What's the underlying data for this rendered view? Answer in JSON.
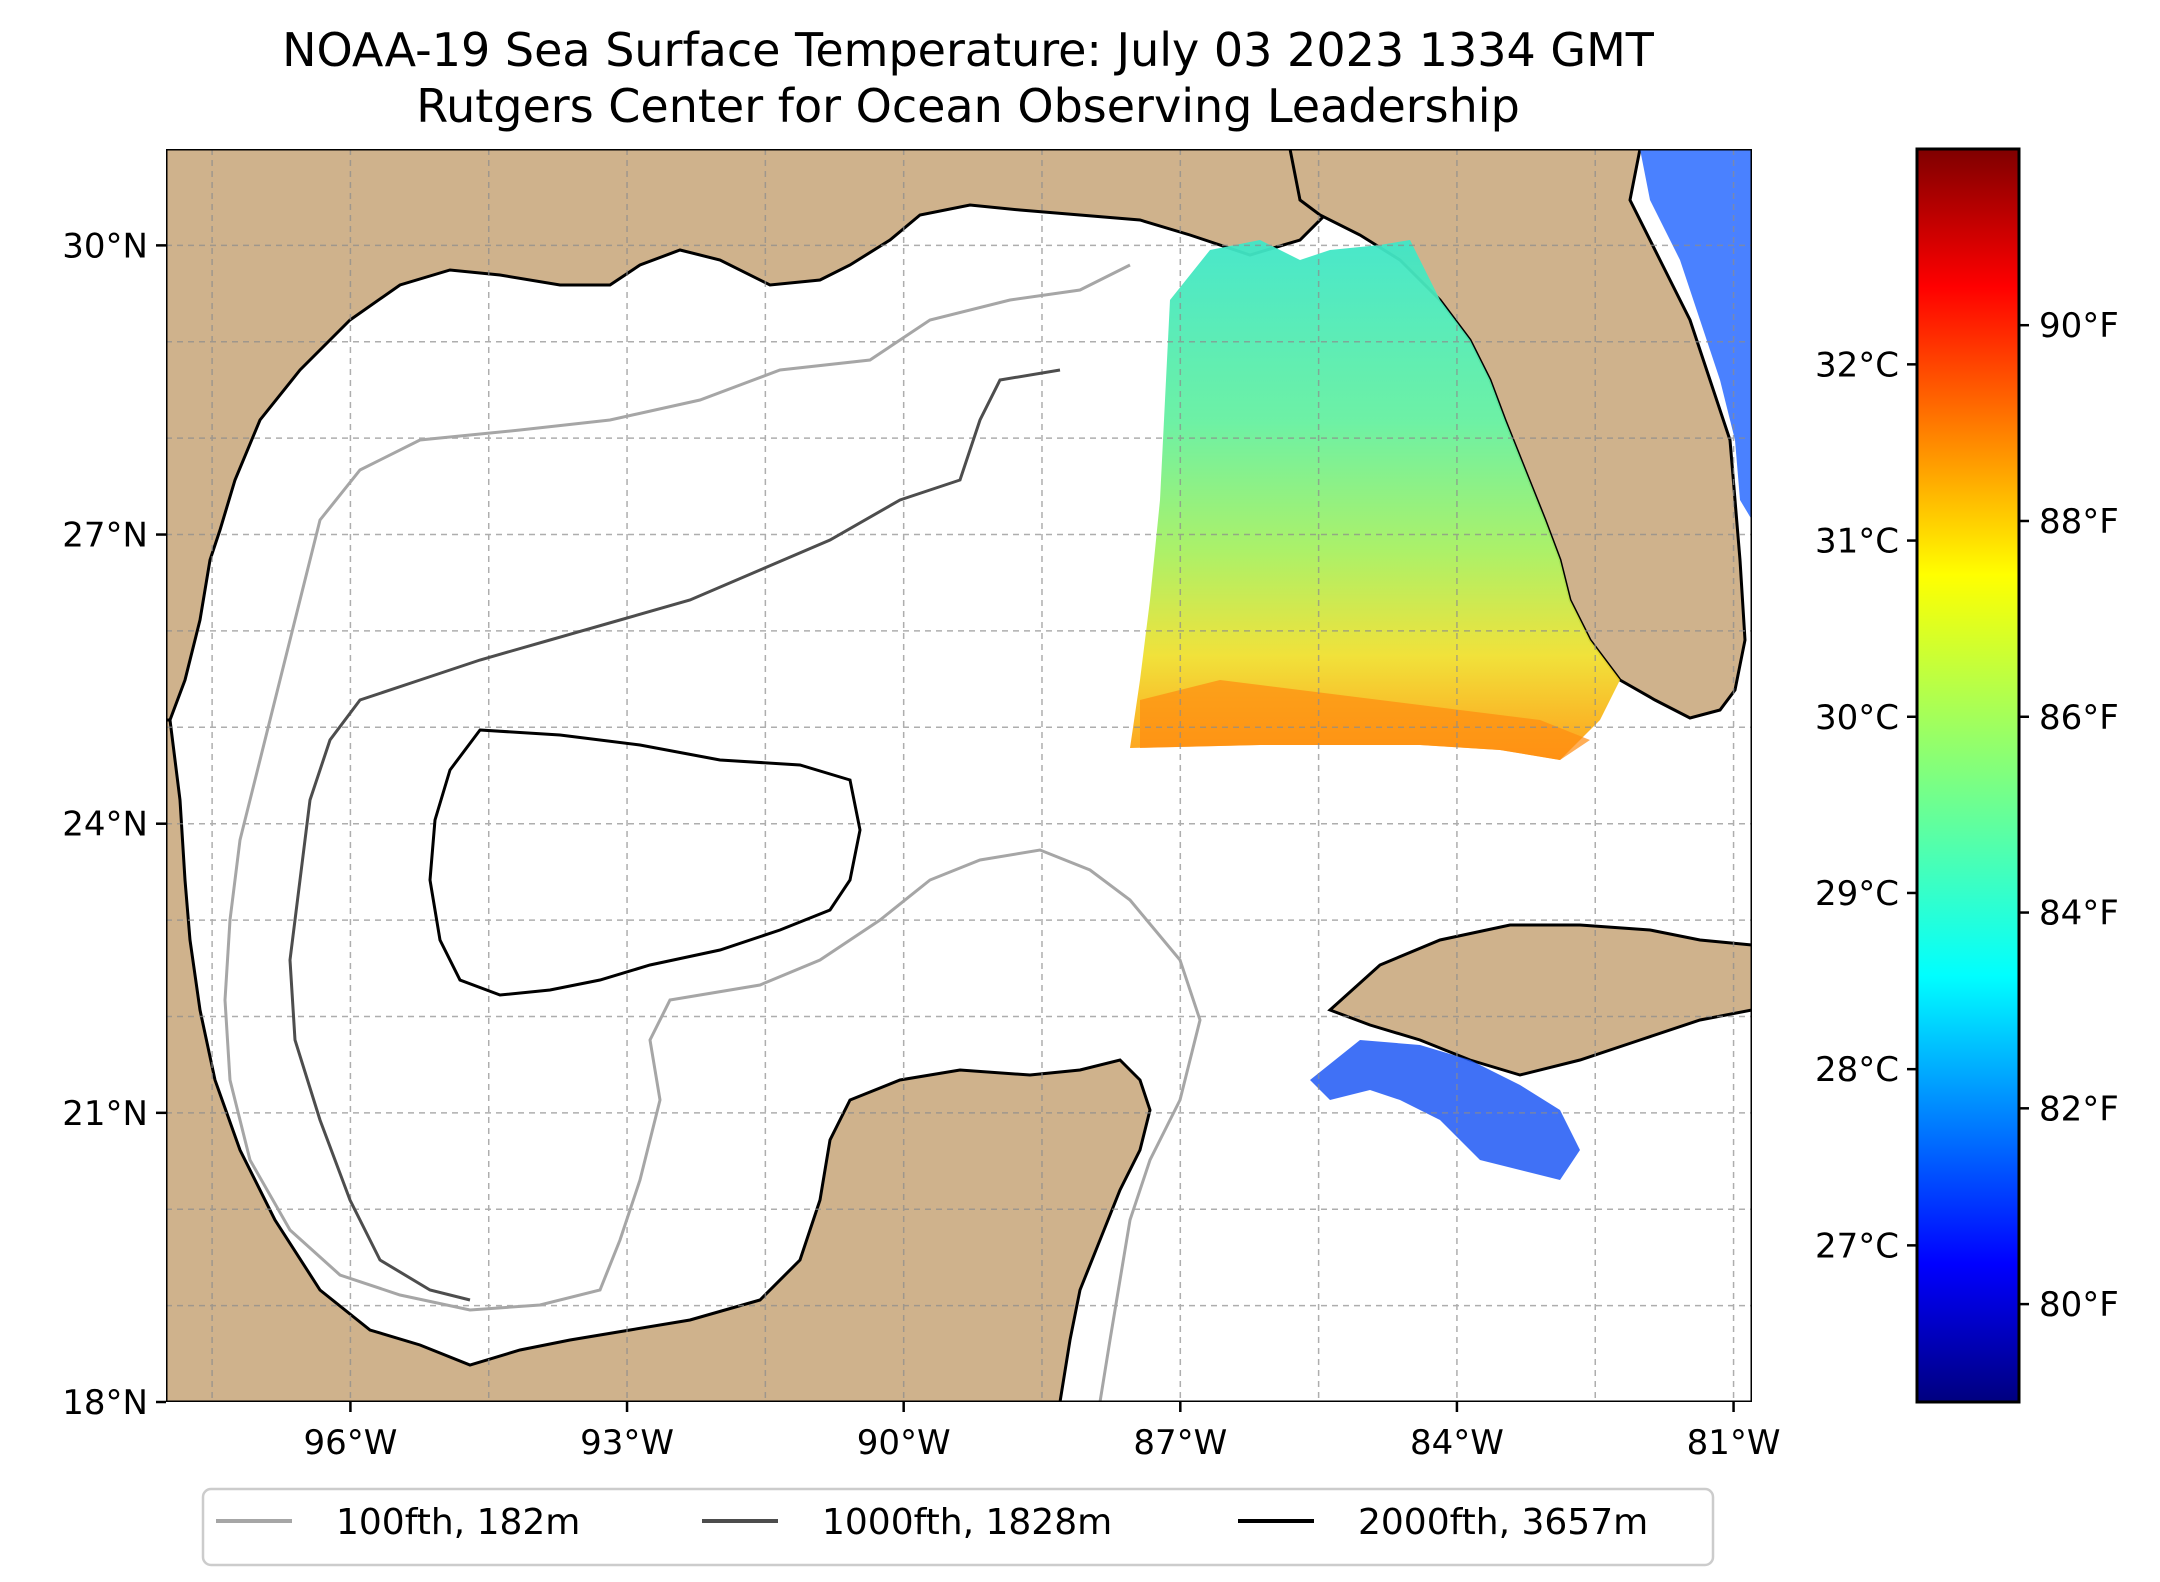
{
  "title": {
    "line1": "NOAA-19 Sea Surface Temperature: July 03 2023 1334 GMT",
    "line2": "Rutgers Center for Ocean Observing Leadership"
  },
  "map": {
    "lon_range": [
      -98.0,
      -80.8
    ],
    "lat_range": [
      18.0,
      31.0
    ],
    "lat_ticks": [
      {
        "value": 18,
        "label": "18°N"
      },
      {
        "value": 21,
        "label": "21°N"
      },
      {
        "value": 24,
        "label": "24°N"
      },
      {
        "value": 27,
        "label": "27°N"
      },
      {
        "value": 30,
        "label": "30°N"
      }
    ],
    "lon_ticks": [
      {
        "value": -96,
        "label": "96°W"
      },
      {
        "value": -93,
        "label": "93°W"
      },
      {
        "value": -90,
        "label": "90°W"
      },
      {
        "value": -87,
        "label": "87°W"
      },
      {
        "value": -84,
        "label": "84°W"
      },
      {
        "value": -81,
        "label": "81°W"
      }
    ],
    "gridlines": "dashed",
    "land_color": "#cfb28c",
    "lake_color": "#9db7e0"
  },
  "colorbar": {
    "colormap": "jet",
    "celsius_ticks": [
      {
        "value": 27,
        "label": "27°C"
      },
      {
        "value": 28,
        "label": "28°C"
      },
      {
        "value": 29,
        "label": "29°C"
      },
      {
        "value": 30,
        "label": "30°C"
      },
      {
        "value": 31,
        "label": "31°C"
      },
      {
        "value": 32,
        "label": "32°C"
      }
    ],
    "fahrenheit_ticks": [
      {
        "value": 80,
        "label": "80°F"
      },
      {
        "value": 82,
        "label": "82°F"
      },
      {
        "value": 84,
        "label": "84°F"
      },
      {
        "value": 86,
        "label": "86°F"
      },
      {
        "value": 88,
        "label": "88°F"
      },
      {
        "value": 90,
        "label": "90°F"
      }
    ],
    "range_f": [
      79.0,
      91.8
    ],
    "colors": [
      "#00007f",
      "#0000ff",
      "#007fff",
      "#00ffff",
      "#7fff7f",
      "#ffff00",
      "#ff7f00",
      "#ff0000",
      "#7f0000"
    ]
  },
  "legend": {
    "items": [
      {
        "label": "100fth, 182m",
        "color": "#a6a6a6"
      },
      {
        "label": "1000fth, 1828m",
        "color": "#4d4d4d"
      },
      {
        "label": "2000fth, 3657m",
        "color": "#000000"
      }
    ]
  }
}
